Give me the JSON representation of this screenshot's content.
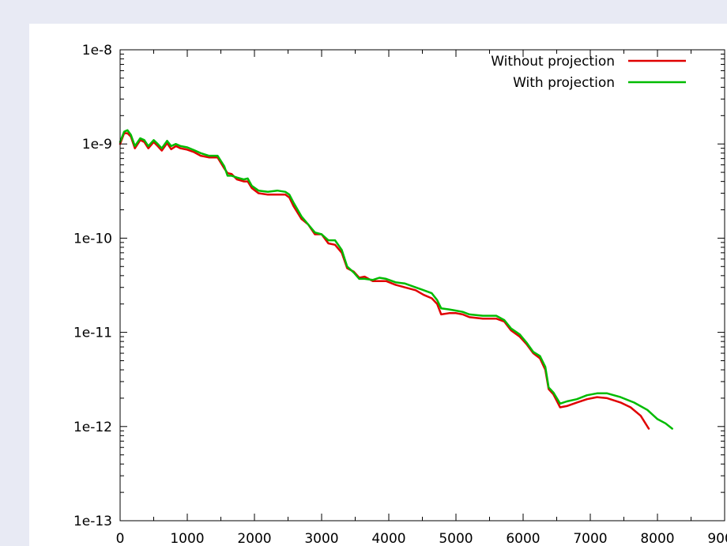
{
  "chart_data": {
    "type": "line",
    "title": "",
    "xlabel": "",
    "ylabel": "",
    "x_scale": "linear",
    "y_scale": "log",
    "xlim": [
      0,
      9000
    ],
    "ylim": [
      1e-13,
      1e-08
    ],
    "x_ticks": [
      0,
      1000,
      2000,
      3000,
      4000,
      5000,
      6000,
      7000,
      8000,
      9000
    ],
    "x_tick_labels": [
      "0",
      "1000",
      "2000",
      "3000",
      "4000",
      "5000",
      "6000",
      "7000",
      "8000",
      "9000"
    ],
    "y_ticks": [
      1e-13,
      1e-12,
      1e-11,
      1e-10,
      1e-09,
      1e-08
    ],
    "y_tick_labels": [
      "1e-13",
      "1e-12",
      "1e-11",
      "1e-10",
      "1e-9",
      "1e-8"
    ],
    "grid": false,
    "legend_position": "top-right",
    "series": [
      {
        "name": "Without projection",
        "color": "#e00000",
        "points": [
          [
            0,
            1e-09
          ],
          [
            60,
            1.3e-09
          ],
          [
            110,
            1.3e-09
          ],
          [
            160,
            1.2e-09
          ],
          [
            220,
            9e-10
          ],
          [
            300,
            1.1e-09
          ],
          [
            360,
            1.05e-09
          ],
          [
            420,
            9e-10
          ],
          [
            500,
            1.05e-09
          ],
          [
            560,
            9.5e-10
          ],
          [
            620,
            8.5e-10
          ],
          [
            700,
            1.02e-09
          ],
          [
            760,
            8.8e-10
          ],
          [
            830,
            9.5e-10
          ],
          [
            900,
            9e-10
          ],
          [
            1000,
            8.7e-10
          ],
          [
            1100,
            8.2e-10
          ],
          [
            1200,
            7.5e-10
          ],
          [
            1320,
            7.2e-10
          ],
          [
            1450,
            7.2e-10
          ],
          [
            1550,
            5.5e-10
          ],
          [
            1600,
            4.9e-10
          ],
          [
            1660,
            4.8e-10
          ],
          [
            1740,
            4.2e-10
          ],
          [
            1840,
            4e-10
          ],
          [
            1900,
            4e-10
          ],
          [
            1960,
            3.4e-10
          ],
          [
            2060,
            3e-10
          ],
          [
            2200,
            2.9e-10
          ],
          [
            2340,
            2.9e-10
          ],
          [
            2460,
            2.9e-10
          ],
          [
            2520,
            2.7e-10
          ],
          [
            2580,
            2.2e-10
          ],
          [
            2700,
            1.6e-10
          ],
          [
            2800,
            1.4e-10
          ],
          [
            2900,
            1.1e-10
          ],
          [
            3000,
            1.1e-10
          ],
          [
            3100,
            8.8e-11
          ],
          [
            3200,
            8.5e-11
          ],
          [
            3300,
            7e-11
          ],
          [
            3380,
            4.8e-11
          ],
          [
            3480,
            4.4e-11
          ],
          [
            3560,
            3.8e-11
          ],
          [
            3640,
            3.9e-11
          ],
          [
            3760,
            3.5e-11
          ],
          [
            3860,
            3.5e-11
          ],
          [
            3960,
            3.5e-11
          ],
          [
            4100,
            3.2e-11
          ],
          [
            4240,
            3e-11
          ],
          [
            4400,
            2.8e-11
          ],
          [
            4520,
            2.5e-11
          ],
          [
            4640,
            2.3e-11
          ],
          [
            4720,
            2e-11
          ],
          [
            4780,
            1.55e-11
          ],
          [
            4900,
            1.6e-11
          ],
          [
            5000,
            1.6e-11
          ],
          [
            5100,
            1.55e-11
          ],
          [
            5200,
            1.45e-11
          ],
          [
            5400,
            1.4e-11
          ],
          [
            5600,
            1.4e-11
          ],
          [
            5720,
            1.3e-11
          ],
          [
            5820,
            1.05e-11
          ],
          [
            5950,
            9e-12
          ],
          [
            6050,
            7.5e-12
          ],
          [
            6150,
            6e-12
          ],
          [
            6250,
            5.3e-12
          ],
          [
            6330,
            4e-12
          ],
          [
            6380,
            2.5e-12
          ],
          [
            6450,
            2.2e-12
          ],
          [
            6550,
            1.6e-12
          ],
          [
            6650,
            1.65e-12
          ],
          [
            6800,
            1.8e-12
          ],
          [
            6950,
            1.95e-12
          ],
          [
            7100,
            2.05e-12
          ],
          [
            7250,
            2e-12
          ],
          [
            7450,
            1.8e-12
          ],
          [
            7600,
            1.6e-12
          ],
          [
            7750,
            1.3e-12
          ],
          [
            7870,
            9.5e-13
          ]
        ]
      },
      {
        "name": "With projection",
        "color": "#00bb00",
        "points": [
          [
            0,
            1.05e-09
          ],
          [
            60,
            1.35e-09
          ],
          [
            110,
            1.4e-09
          ],
          [
            160,
            1.25e-09
          ],
          [
            220,
            9.5e-10
          ],
          [
            300,
            1.15e-09
          ],
          [
            360,
            1.1e-09
          ],
          [
            420,
            9.5e-10
          ],
          [
            500,
            1.1e-09
          ],
          [
            560,
            1e-09
          ],
          [
            620,
            9e-10
          ],
          [
            700,
            1.08e-09
          ],
          [
            760,
            9.5e-10
          ],
          [
            830,
            1e-09
          ],
          [
            900,
            9.5e-10
          ],
          [
            1000,
            9.2e-10
          ],
          [
            1100,
            8.6e-10
          ],
          [
            1200,
            8e-10
          ],
          [
            1320,
            7.5e-10
          ],
          [
            1450,
            7.5e-10
          ],
          [
            1550,
            5.8e-10
          ],
          [
            1600,
            4.6e-10
          ],
          [
            1660,
            4.6e-10
          ],
          [
            1740,
            4.4e-10
          ],
          [
            1840,
            4.2e-10
          ],
          [
            1900,
            4.3e-10
          ],
          [
            1960,
            3.6e-10
          ],
          [
            2060,
            3.2e-10
          ],
          [
            2200,
            3.1e-10
          ],
          [
            2340,
            3.2e-10
          ],
          [
            2460,
            3.1e-10
          ],
          [
            2520,
            2.9e-10
          ],
          [
            2580,
            2.4e-10
          ],
          [
            2700,
            1.7e-10
          ],
          [
            2800,
            1.4e-10
          ],
          [
            2900,
            1.15e-10
          ],
          [
            3000,
            1.1e-10
          ],
          [
            3100,
            9.5e-11
          ],
          [
            3200,
            9.5e-11
          ],
          [
            3300,
            7.5e-11
          ],
          [
            3380,
            5e-11
          ],
          [
            3480,
            4.3e-11
          ],
          [
            3560,
            3.7e-11
          ],
          [
            3640,
            3.7e-11
          ],
          [
            3760,
            3.6e-11
          ],
          [
            3860,
            3.8e-11
          ],
          [
            3960,
            3.7e-11
          ],
          [
            4100,
            3.4e-11
          ],
          [
            4240,
            3.3e-11
          ],
          [
            4400,
            3e-11
          ],
          [
            4520,
            2.8e-11
          ],
          [
            4640,
            2.6e-11
          ],
          [
            4720,
            2.2e-11
          ],
          [
            4780,
            1.8e-11
          ],
          [
            4900,
            1.75e-11
          ],
          [
            5000,
            1.7e-11
          ],
          [
            5100,
            1.65e-11
          ],
          [
            5200,
            1.55e-11
          ],
          [
            5400,
            1.5e-11
          ],
          [
            5600,
            1.5e-11
          ],
          [
            5720,
            1.35e-11
          ],
          [
            5820,
            1.1e-11
          ],
          [
            5950,
            9.5e-12
          ],
          [
            6050,
            7.8e-12
          ],
          [
            6150,
            6.2e-12
          ],
          [
            6250,
            5.6e-12
          ],
          [
            6330,
            4.3e-12
          ],
          [
            6380,
            2.6e-12
          ],
          [
            6450,
            2.3e-12
          ],
          [
            6550,
            1.75e-12
          ],
          [
            6650,
            1.85e-12
          ],
          [
            6800,
            1.95e-12
          ],
          [
            6950,
            2.15e-12
          ],
          [
            7100,
            2.25e-12
          ],
          [
            7250,
            2.25e-12
          ],
          [
            7450,
            2.05e-12
          ],
          [
            7650,
            1.8e-12
          ],
          [
            7850,
            1.5e-12
          ],
          [
            8000,
            1.2e-12
          ],
          [
            8120,
            1.08e-12
          ],
          [
            8220,
            9.5e-13
          ]
        ]
      }
    ]
  }
}
